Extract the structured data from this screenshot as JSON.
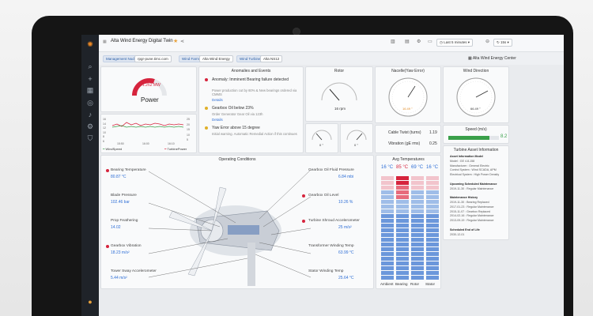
{
  "header": {
    "title": "Alta Wind Energy Digital Twin",
    "time_range": "Last 5 minutes",
    "refresh": "15s"
  },
  "variables": {
    "mgmt_label": "Management Node",
    "mgmt_value": "rpgr-pune.timc.com",
    "farm_label": "Wind Farm",
    "farm_value": "Alta Wind Energy",
    "turbine_label": "Wind Turbine",
    "turbine_value": "Alta NS12",
    "link_label": "Alta Wind Energy Center"
  },
  "power": {
    "value": "1.262 MW",
    "label": "Power",
    "fraction": 0.6
  },
  "windchart": {
    "legend_left": "WindSpeed",
    "legend_right": "TurbinePower",
    "y_left": [
      "16",
      "14",
      "12",
      "10",
      "8",
      "6"
    ],
    "y_right": [
      "25",
      "20",
      "15",
      "10",
      "5"
    ],
    "x_ticks": [
      "15:50",
      "16:00",
      "16:10"
    ]
  },
  "anomalies": {
    "title": "Anomalies and Events",
    "items": [
      {
        "title": "Anomaly: Imminent Bearing failure detected",
        "body": "Power production cut by 60% & New bearings ordered via CMMS",
        "link": "Details",
        "color": "#d6243d"
      },
      {
        "title": "Gearbox Oil below 23%",
        "body": "Order Generator Gear Oil via 123h",
        "link": "Details",
        "color": "#e0b02a"
      },
      {
        "title": "Yaw Error above 15 degree",
        "body": "Initial warning. Automatic Remedial Action if this continues",
        "link": "",
        "color": "#e0b02a"
      }
    ]
  },
  "rotor": {
    "title": "Rotor",
    "value": "16 rpm",
    "small_left": "0 °",
    "small_right": "0 °"
  },
  "nacelle": {
    "title": "Nacelle(Yaw Error)",
    "value": "16.49 °"
  },
  "wind_direction": {
    "title": "Wind Direction",
    "value": "66.49 °"
  },
  "cable_twist": {
    "label": "Cable Twist (turns)",
    "value": "1.19"
  },
  "vibration": {
    "label": "Vibration (gE rms)",
    "value": "0.25"
  },
  "speed": {
    "title": "Speed (m/s)",
    "value": "8.2",
    "fraction": 0.82
  },
  "asset_info": {
    "title": "Turbine Asset Information",
    "lines": [
      "Asset Information Model",
      "Model : GE 4.8-158",
      "Manufacturer : General Electric",
      "Control System : Wind SCADA, APM",
      "Electrical System : High Power Density",
      "",
      "Upcoming Scheduled Maintenance",
      "2019-11-30 : Regular Maintenance",
      "",
      "Maintenance History",
      "2019-11-30 : Bearing Replaced",
      "2017-01-23 : Regular Maintenance",
      "2015-11-07 : Gearbox Replaced",
      "2014-02-16 : Regular Maintenance",
      "2013-09-19 : Regular Maintenance",
      "",
      "Scheduled End of Life",
      "2030-12-01"
    ]
  },
  "operating": {
    "title": "Operating Conditions",
    "left": [
      {
        "label": "Bearing Temperature",
        "value": "80.87 °C",
        "alert": true
      },
      {
        "label": "Blade Pressure",
        "value": "102.46 bar",
        "alert": false
      },
      {
        "label": "Prop Feathering",
        "value": "14.02",
        "alert": false
      },
      {
        "label": "Gearbox Vibration",
        "value": "18.23 m/s²",
        "alert": true
      },
      {
        "label": "Tower Sway Accelerometer",
        "value": "5.44 m/s²",
        "alert": false
      }
    ],
    "right": [
      {
        "label": "Gearbox Oil Fluid Pressure",
        "value": "6.84 mbi",
        "alert": false
      },
      {
        "label": "Gearbox Oil Level",
        "value": "10.26 %",
        "alert": true
      },
      {
        "label": "Turbine Shroud Accelerometer",
        "value": "25 m/s²",
        "alert": true
      },
      {
        "label": "Transformer Winding Temp",
        "value": "63.99 °C",
        "alert": false
      },
      {
        "label": "Stator Winding Temp",
        "value": "25.64 °C",
        "alert": false
      }
    ]
  },
  "avg_temps": {
    "title": "Avg Temperatures",
    "columns": [
      {
        "name": "Ambient",
        "temp": "16 °C",
        "color": "#2f6fd6"
      },
      {
        "name": "Bearing",
        "temp": "85 °C",
        "color": "#d6243d"
      },
      {
        "name": "Rotor",
        "temp": "69 °C",
        "color": "#2f6fd6"
      },
      {
        "name": "Stator",
        "temp": "16 °C",
        "color": "#2f6fd6"
      }
    ]
  }
}
